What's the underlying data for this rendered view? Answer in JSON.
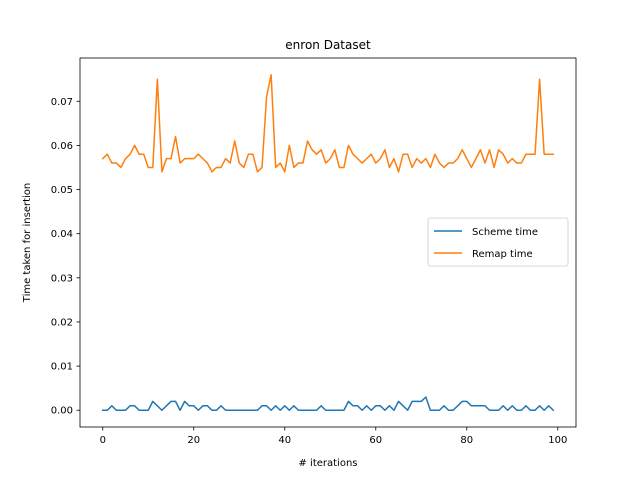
{
  "chart_data": {
    "type": "line",
    "title": "enron Dataset",
    "xlabel": "# iterations",
    "ylabel": "Time taken for insertion",
    "xlim": [
      -5.0,
      104.0
    ],
    "ylim": [
      -0.0038,
      0.0798
    ],
    "x_ticks": [
      0,
      20,
      40,
      60,
      80,
      100
    ],
    "x_tick_labels": [
      "0",
      "20",
      "40",
      "60",
      "80",
      "100"
    ],
    "y_ticks": [
      0.0,
      0.01,
      0.02,
      0.03,
      0.04,
      0.05,
      0.06,
      0.07
    ],
    "y_tick_labels": [
      "0.00",
      "0.01",
      "0.02",
      "0.03",
      "0.04",
      "0.05",
      "0.06",
      "0.07"
    ],
    "grid": false,
    "legend_position": "center-right",
    "x": [
      0,
      1,
      2,
      3,
      4,
      5,
      6,
      7,
      8,
      9,
      10,
      11,
      12,
      13,
      14,
      15,
      16,
      17,
      18,
      19,
      20,
      21,
      22,
      23,
      24,
      25,
      26,
      27,
      28,
      29,
      30,
      31,
      32,
      33,
      34,
      35,
      36,
      37,
      38,
      39,
      40,
      41,
      42,
      43,
      44,
      45,
      46,
      47,
      48,
      49,
      50,
      51,
      52,
      53,
      54,
      55,
      56,
      57,
      58,
      59,
      60,
      61,
      62,
      63,
      64,
      65,
      66,
      67,
      68,
      69,
      70,
      71,
      72,
      73,
      74,
      75,
      76,
      77,
      78,
      79,
      80,
      81,
      82,
      83,
      84,
      85,
      86,
      87,
      88,
      89,
      90,
      91,
      92,
      93,
      94,
      95,
      96,
      97,
      98,
      99
    ],
    "series": [
      {
        "name": "Scheme time",
        "color": "#1f77b4",
        "values": [
          0.0,
          0.0,
          0.001,
          0.0,
          0.0,
          0.0,
          0.001,
          0.001,
          0.0,
          0.0,
          0.0,
          0.002,
          0.001,
          0.0,
          0.001,
          0.002,
          0.002,
          0.0,
          0.002,
          0.001,
          0.001,
          0.0,
          0.001,
          0.001,
          0.0,
          0.0,
          0.001,
          0.0,
          0.0,
          0.0,
          0.0,
          0.0,
          0.0,
          0.0,
          0.0,
          0.001,
          0.001,
          0.0,
          0.001,
          0.0,
          0.001,
          0.0,
          0.001,
          0.0,
          0.0,
          0.0,
          0.0,
          0.0,
          0.001,
          0.0,
          0.0,
          0.0,
          0.0,
          0.0,
          0.002,
          0.001,
          0.001,
          0.0,
          0.001,
          0.0,
          0.001,
          0.001,
          0.0,
          0.001,
          0.0,
          0.002,
          0.001,
          0.0,
          0.002,
          0.002,
          0.002,
          0.003,
          0.0,
          0.0,
          0.0,
          0.001,
          0.0,
          0.0,
          0.001,
          0.002,
          0.002,
          0.001,
          0.001,
          0.001,
          0.001,
          0.0,
          0.0,
          0.0,
          0.001,
          0.0,
          0.001,
          0.0,
          0.0,
          0.001,
          0.0,
          0.0,
          0.001,
          0.0,
          0.001,
          0.0
        ]
      },
      {
        "name": "Remap time",
        "color": "#ff7f0e",
        "values": [
          0.057,
          0.058,
          0.056,
          0.056,
          0.055,
          0.057,
          0.058,
          0.06,
          0.058,
          0.058,
          0.055,
          0.055,
          0.075,
          0.054,
          0.057,
          0.057,
          0.062,
          0.056,
          0.057,
          0.057,
          0.057,
          0.058,
          0.057,
          0.056,
          0.054,
          0.055,
          0.055,
          0.057,
          0.056,
          0.061,
          0.056,
          0.055,
          0.058,
          0.058,
          0.054,
          0.055,
          0.071,
          0.076,
          0.055,
          0.056,
          0.054,
          0.06,
          0.055,
          0.056,
          0.056,
          0.061,
          0.059,
          0.058,
          0.059,
          0.056,
          0.057,
          0.059,
          0.055,
          0.055,
          0.06,
          0.058,
          0.057,
          0.056,
          0.057,
          0.058,
          0.056,
          0.057,
          0.059,
          0.055,
          0.057,
          0.054,
          0.058,
          0.058,
          0.055,
          0.057,
          0.056,
          0.057,
          0.055,
          0.058,
          0.056,
          0.055,
          0.056,
          0.056,
          0.057,
          0.059,
          0.057,
          0.055,
          0.057,
          0.059,
          0.056,
          0.059,
          0.055,
          0.059,
          0.058,
          0.056,
          0.057,
          0.056,
          0.056,
          0.058,
          0.058,
          0.058,
          0.075,
          0.058,
          0.058,
          0.058
        ]
      }
    ]
  }
}
